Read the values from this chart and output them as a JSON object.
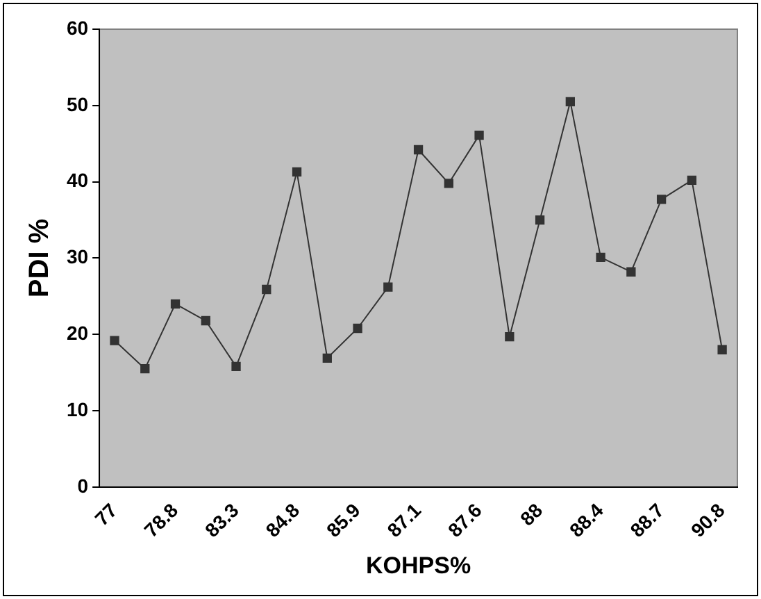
{
  "chart_data": {
    "type": "line",
    "xlabel": "KOHPS%",
    "ylabel": "PDI %",
    "categories": [
      "77",
      null,
      "78.8",
      null,
      "83.3",
      null,
      "84.8",
      null,
      "85.9",
      null,
      "87.1",
      null,
      "87.6",
      null,
      "88",
      null,
      "88.4",
      null,
      "88.7",
      null,
      "90.8"
    ],
    "series": [
      {
        "color": "#333333",
        "values": [
          19.2,
          15.5,
          24,
          21.8,
          15.8,
          25.9,
          41.3,
          16.9,
          20.8,
          26.2,
          44.2,
          39.8,
          46.1,
          19.7,
          35,
          50.5,
          30.1,
          28.2,
          37.7,
          40.2,
          18
        ]
      }
    ],
    "ylim": [
      0,
      60
    ],
    "yticks": [
      0,
      10,
      20,
      30,
      40,
      50,
      60
    ],
    "grid": false,
    "legend": false,
    "marker": "square",
    "line_style": "solid"
  }
}
